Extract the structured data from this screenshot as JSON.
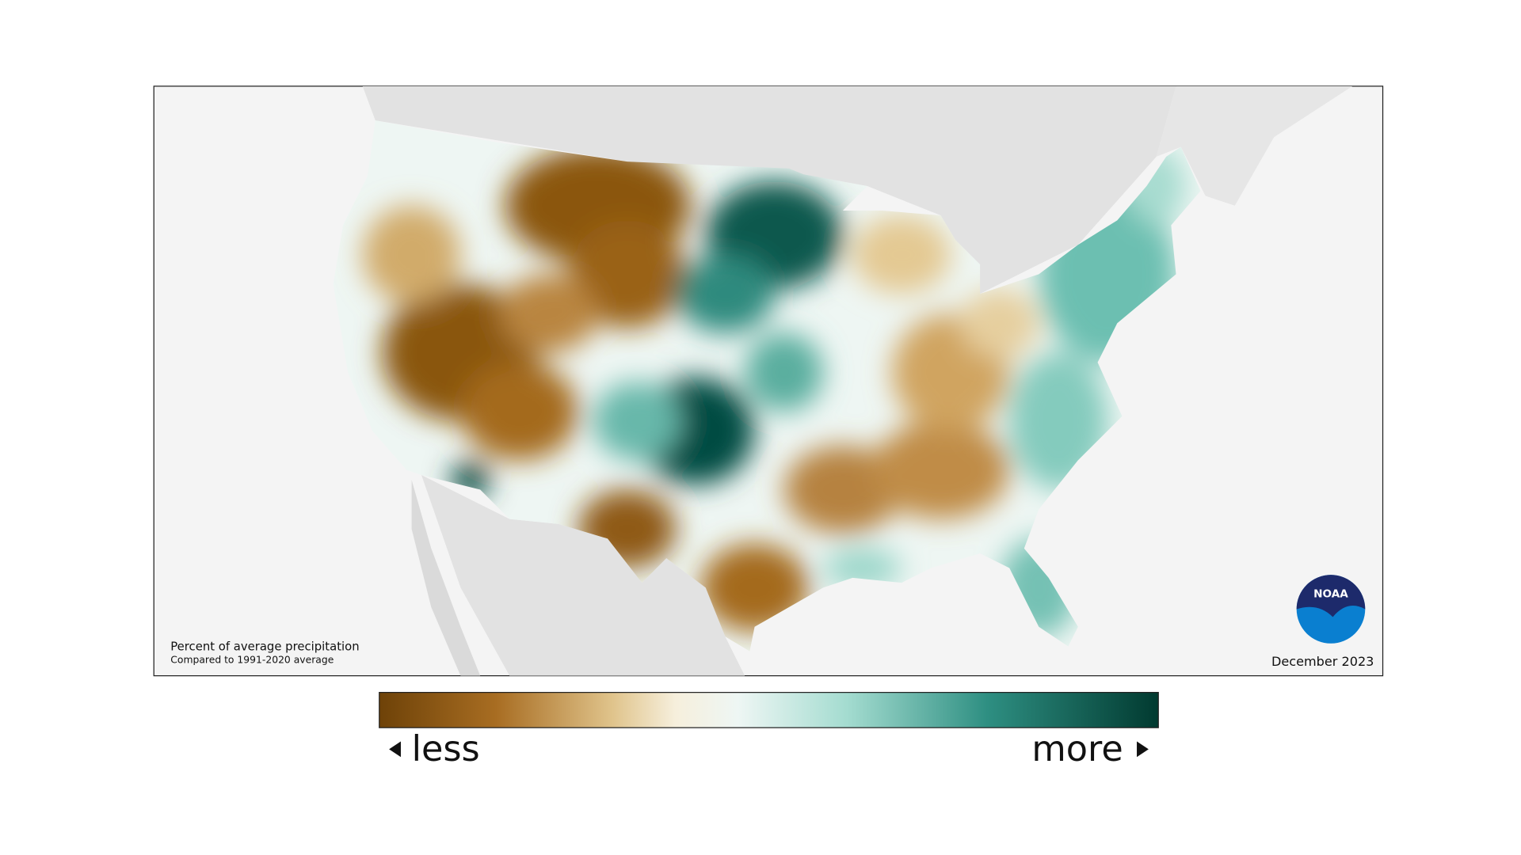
{
  "map": {
    "caption": {
      "title": "Percent of average precipitation",
      "subtitle": "Compared to 1991-2020 average"
    },
    "date": "December 2023",
    "logo": "NOAA"
  },
  "legend": {
    "less": "less",
    "more": "more"
  }
}
